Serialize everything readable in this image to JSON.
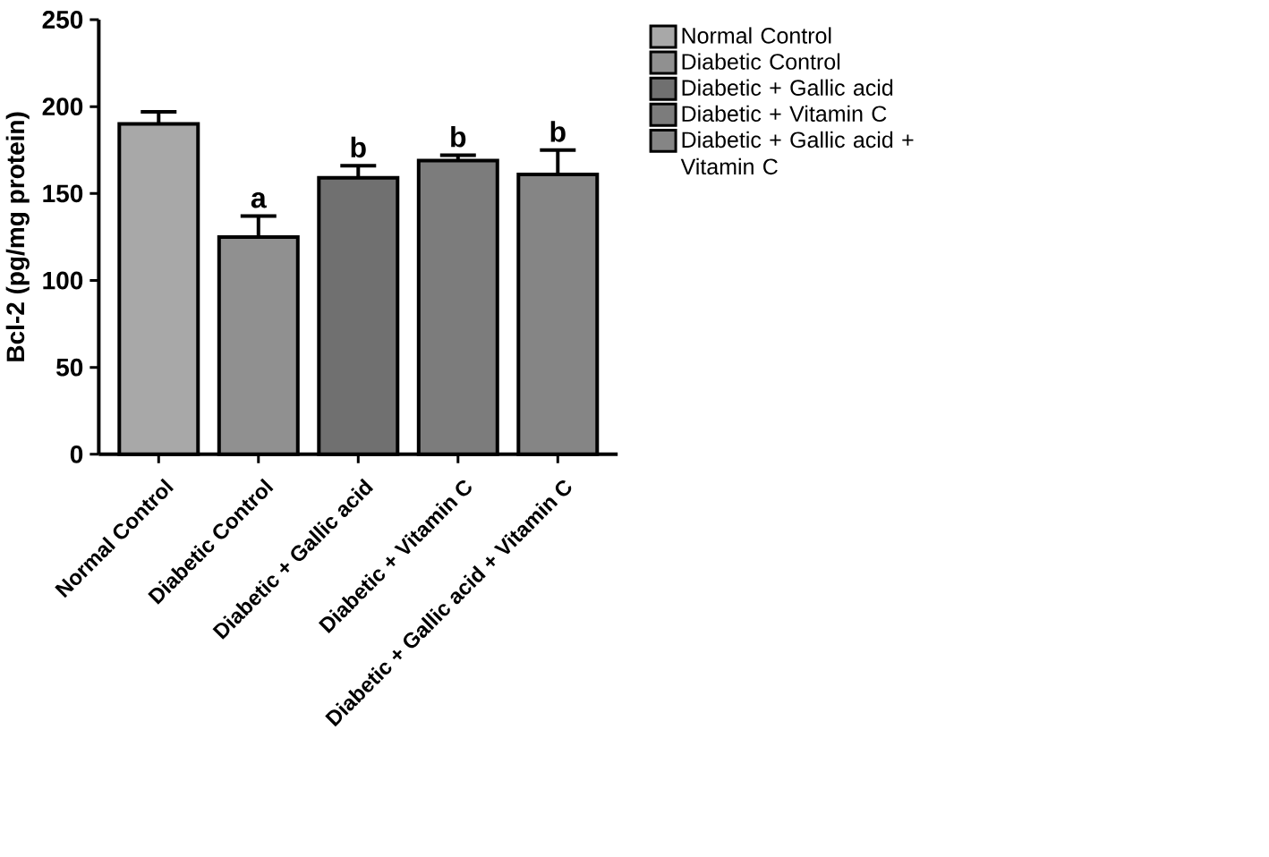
{
  "chart_data": {
    "type": "bar",
    "ylabel": "Bcl-2 (pg/mg protein)",
    "categories": [
      "Normal Control",
      "Diabetic Control",
      "Diabetic + Gallic acid",
      "Diabetic + Vitamin C",
      "Diabetic + Gallic acid + Vitamin C"
    ],
    "series": [
      {
        "name": "Normal Control",
        "color": "#a8a8a8",
        "values": [
          190,
          null,
          null,
          null,
          null
        ],
        "errors": [
          7,
          null,
          null,
          null,
          null
        ]
      },
      {
        "name": "Diabetic Control",
        "color": "#909090",
        "values": [
          null,
          125,
          null,
          null,
          null
        ],
        "errors": [
          null,
          12,
          null,
          null,
          null
        ]
      },
      {
        "name": "Diabetic + Gallic acid",
        "color": "#707070",
        "values": [
          null,
          null,
          159,
          null,
          null
        ],
        "errors": [
          null,
          null,
          7,
          null,
          null
        ]
      },
      {
        "name": "Diabetic + Vitamin C",
        "color": "#7c7c7c",
        "values": [
          null,
          null,
          null,
          169,
          null
        ],
        "errors": [
          null,
          null,
          null,
          3,
          null
        ]
      },
      {
        "name": "Diabetic + Gallic acid + Vitamin C",
        "color": "#858585",
        "values": [
          null,
          null,
          null,
          null,
          161
        ],
        "errors": [
          null,
          null,
          null,
          null,
          14
        ]
      }
    ],
    "ylim": [
      0,
      250
    ],
    "yticks": [
      0,
      50,
      100,
      150,
      200,
      250
    ],
    "legend": "right",
    "annotations": [
      "a",
      "b",
      "b",
      "b"
    ]
  }
}
